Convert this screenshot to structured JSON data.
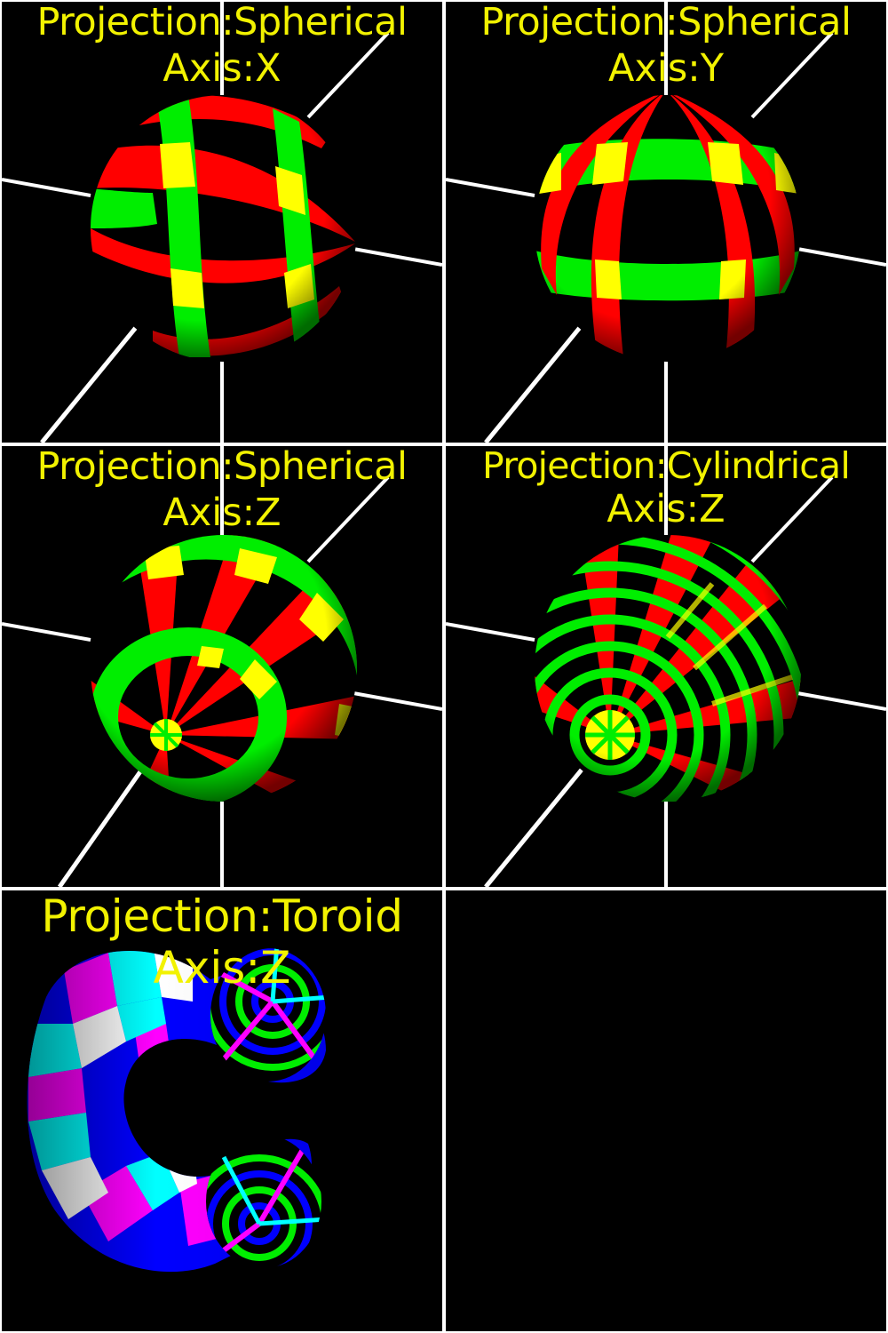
{
  "panels": [
    {
      "projection_label": "Projection:Spherical",
      "axis_label": "Axis:X",
      "object": "sphere",
      "projection": "spherical",
      "axis": "X",
      "colors": [
        "#ff0000",
        "#00ee00",
        "#ffff00",
        "#000000"
      ]
    },
    {
      "projection_label": "Projection:Spherical",
      "axis_label": "Axis:Y",
      "object": "sphere",
      "projection": "spherical",
      "axis": "Y",
      "colors": [
        "#ff0000",
        "#00ee00",
        "#ffff00",
        "#000000"
      ]
    },
    {
      "projection_label": "Projection:Spherical",
      "axis_label": "Axis:Z",
      "object": "sphere",
      "projection": "spherical",
      "axis": "Z",
      "colors": [
        "#ff0000",
        "#00ee00",
        "#ffff00",
        "#000000"
      ]
    },
    {
      "projection_label": "Projection:Cylindrical",
      "axis_label": "Axis:Z",
      "object": "sphere",
      "projection": "cylindrical",
      "axis": "Z",
      "colors": [
        "#ff0000",
        "#00ee00",
        "#ffff00",
        "#000000"
      ]
    },
    {
      "projection_label": "Projection:Toroid",
      "axis_label": "Axis:Z",
      "object": "torus",
      "projection": "toroid",
      "axis": "Z",
      "colors": [
        "#0000ff",
        "#ff00ff",
        "#00ffff",
        "#ffffff"
      ]
    }
  ],
  "background": "#000000",
  "divider_color": "#ffffff",
  "axis_line_color": "#ffffff"
}
